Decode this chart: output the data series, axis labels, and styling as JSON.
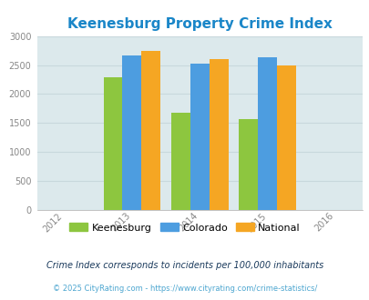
{
  "title": "Keenesburg Property Crime Index",
  "years": [
    2013,
    2014,
    2015
  ],
  "xtick_labels": [
    "2012",
    "2013",
    "2014",
    "2015",
    "2016"
  ],
  "xtick_positions": [
    2012,
    2013,
    2014,
    2015,
    2016
  ],
  "keenesburg": [
    2290,
    1670,
    1575
  ],
  "colorado": [
    2660,
    2530,
    2640
  ],
  "national": [
    2740,
    2600,
    2490
  ],
  "bar_colors": {
    "keenesburg": "#8dc63f",
    "colorado": "#4d9de0",
    "national": "#f5a623"
  },
  "ylim": [
    0,
    3000
  ],
  "yticks": [
    0,
    500,
    1000,
    1500,
    2000,
    2500,
    3000
  ],
  "plot_bg_color": "#dce9ec",
  "title_color": "#1a86c8",
  "title_fontsize": 11,
  "legend_labels": [
    "Keenesburg",
    "Colorado",
    "National"
  ],
  "footnote1": "Crime Index corresponds to incidents per 100,000 inhabitants",
  "footnote2": "© 2025 CityRating.com - https://www.cityrating.com/crime-statistics/",
  "bar_width": 0.28,
  "grid_color": "#c8d8dc",
  "tick_color": "#888888",
  "footnote1_color": "#1a3a5c",
  "footnote2_color": "#4da6d0",
  "xlim": [
    2011.6,
    2016.4
  ]
}
